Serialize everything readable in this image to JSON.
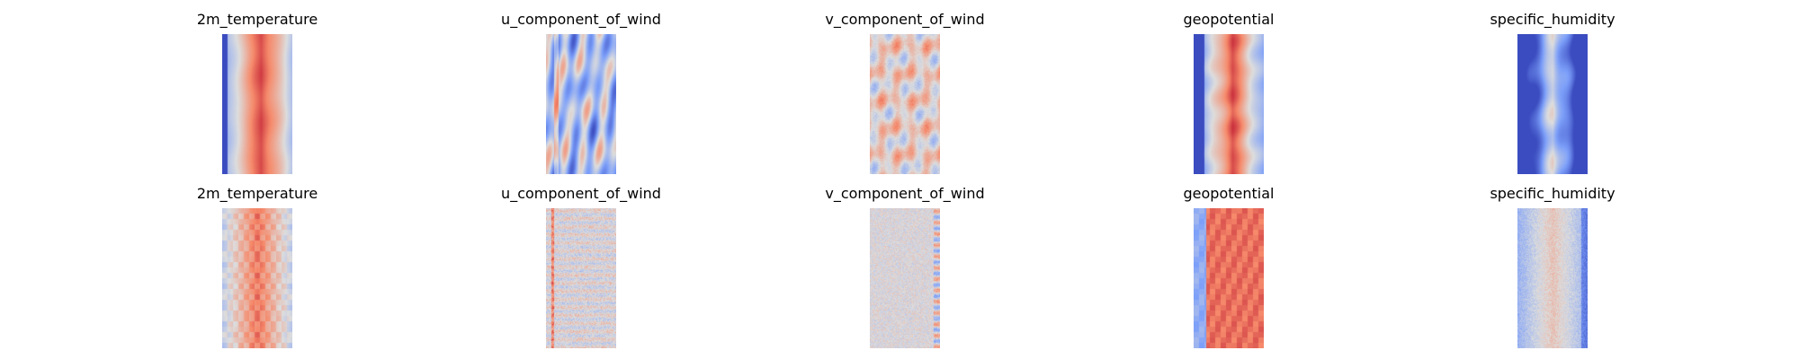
{
  "chart_data": {
    "type": "heatmap",
    "colormap": "coolwarm",
    "axes_visible": false,
    "rows": [
      {
        "panels": [
          {
            "title": "2m_temperature",
            "pattern": "warm_band"
          },
          {
            "title": "u_component_of_wind",
            "pattern": "wind_u"
          },
          {
            "title": "v_component_of_wind",
            "pattern": "wind_v"
          },
          {
            "title": "geopotential",
            "pattern": "geo"
          },
          {
            "title": "specific_humidity",
            "pattern": "humid"
          }
        ]
      },
      {
        "panels": [
          {
            "title": "2m_temperature",
            "pattern": "warm_blocky"
          },
          {
            "title": "u_component_of_wind",
            "pattern": "noisy_u"
          },
          {
            "title": "v_component_of_wind",
            "pattern": "noisy_v"
          },
          {
            "title": "geopotential",
            "pattern": "geo_blocky"
          },
          {
            "title": "specific_humidity",
            "pattern": "humid_noisy"
          }
        ]
      }
    ]
  }
}
